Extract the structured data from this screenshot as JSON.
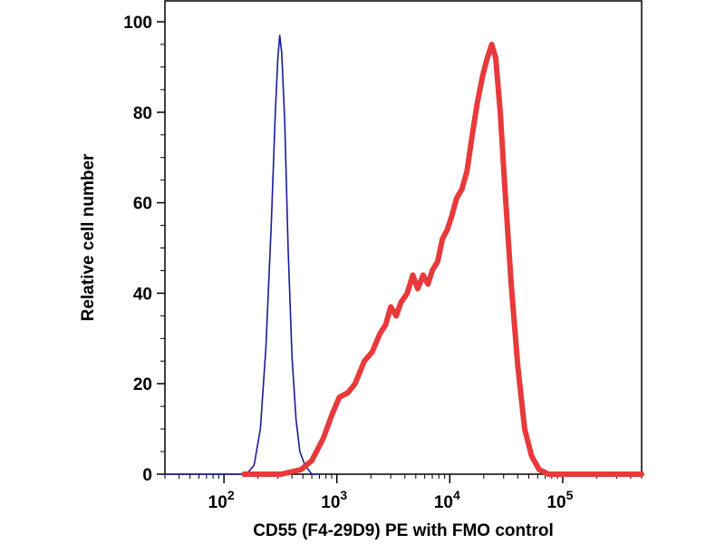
{
  "chart_data": {
    "type": "line",
    "title": "",
    "xlabel": "CD55 (F4-29D9) PE with FMO control",
    "ylabel": "Relative cell number",
    "x_scale": "log",
    "xlim": [
      30,
      500000
    ],
    "ylim": [
      0,
      100
    ],
    "grid": false,
    "legend": "none",
    "x_ticks": [
      {
        "value": 100,
        "base": "10",
        "exp": "2"
      },
      {
        "value": 1000,
        "base": "10",
        "exp": "3"
      },
      {
        "value": 10000,
        "base": "10",
        "exp": "4"
      },
      {
        "value": 100000,
        "base": "10",
        "exp": "5"
      }
    ],
    "y_ticks": [
      {
        "value": 0,
        "label": "0"
      },
      {
        "value": 20,
        "label": "20"
      },
      {
        "value": 40,
        "label": "40"
      },
      {
        "value": 60,
        "label": "60"
      },
      {
        "value": 80,
        "label": "80"
      },
      {
        "value": 100,
        "label": "100"
      }
    ],
    "series": [
      {
        "color": "#1a1a99",
        "width": "thin",
        "points": [
          [
            30,
            0
          ],
          [
            158,
            0
          ],
          [
            185,
            2
          ],
          [
            210,
            10
          ],
          [
            235,
            28
          ],
          [
            262,
            55
          ],
          [
            285,
            80
          ],
          [
            300,
            92
          ],
          [
            312,
            97
          ],
          [
            325,
            93
          ],
          [
            345,
            78
          ],
          [
            370,
            50
          ],
          [
            400,
            26
          ],
          [
            435,
            12
          ],
          [
            470,
            5
          ],
          [
            520,
            2
          ],
          [
            600,
            0
          ],
          [
            700,
            0
          ]
        ]
      },
      {
        "color": "#e8393b",
        "width": "thick",
        "points": [
          [
            150,
            0
          ],
          [
            320,
            0
          ],
          [
            480,
            1
          ],
          [
            600,
            3
          ],
          [
            760,
            8
          ],
          [
            900,
            13
          ],
          [
            1050,
            17
          ],
          [
            1250,
            18
          ],
          [
            1450,
            20
          ],
          [
            1750,
            25
          ],
          [
            2050,
            27
          ],
          [
            2400,
            31
          ],
          [
            2700,
            33
          ],
          [
            3000,
            37
          ],
          [
            3350,
            35
          ],
          [
            3700,
            38
          ],
          [
            4200,
            40
          ],
          [
            4700,
            44
          ],
          [
            5200,
            41
          ],
          [
            5800,
            44
          ],
          [
            6400,
            42
          ],
          [
            7000,
            45
          ],
          [
            7800,
            47
          ],
          [
            8600,
            52
          ],
          [
            9500,
            54
          ],
          [
            10400,
            57
          ],
          [
            11500,
            61
          ],
          [
            12800,
            63
          ],
          [
            14200,
            67
          ],
          [
            15800,
            75
          ],
          [
            17500,
            82
          ],
          [
            19500,
            88
          ],
          [
            21500,
            92
          ],
          [
            23500,
            95
          ],
          [
            25500,
            92
          ],
          [
            28000,
            80
          ],
          [
            31000,
            62
          ],
          [
            35000,
            42
          ],
          [
            40000,
            24
          ],
          [
            46000,
            10
          ],
          [
            53000,
            4
          ],
          [
            62000,
            1
          ],
          [
            75000,
            0
          ],
          [
            500000,
            0
          ]
        ]
      }
    ]
  }
}
